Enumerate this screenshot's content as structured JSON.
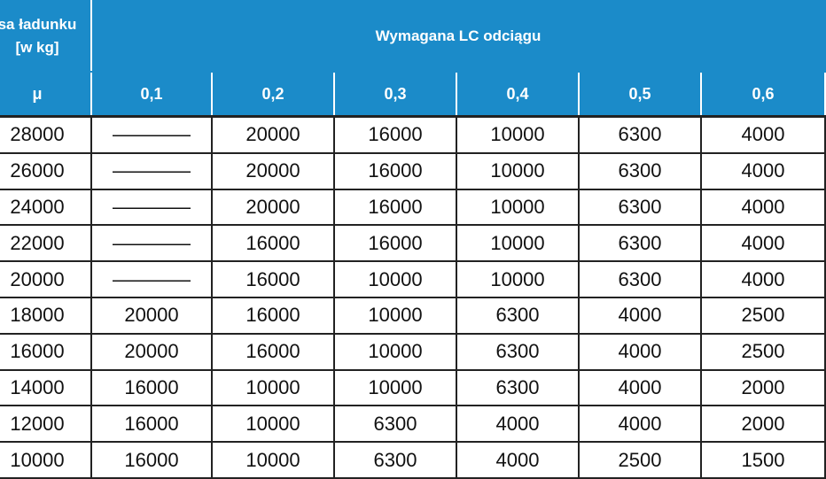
{
  "table": {
    "header": {
      "first_col": [
        "sa ładunku",
        "[w kg]"
      ],
      "group": "Wymagana LC odciągu"
    },
    "subheader": [
      "μ",
      "0,1",
      "0,2",
      "0,3",
      "0,4",
      "0,5",
      "0,6"
    ],
    "rows": [
      [
        28000,
        "————",
        20000,
        16000,
        10000,
        6300,
        4000
      ],
      [
        26000,
        "————",
        20000,
        16000,
        10000,
        6300,
        4000
      ],
      [
        24000,
        "————",
        20000,
        16000,
        10000,
        6300,
        4000
      ],
      [
        22000,
        "————",
        16000,
        16000,
        10000,
        6300,
        4000
      ],
      [
        20000,
        "————",
        16000,
        10000,
        10000,
        6300,
        4000
      ],
      [
        18000,
        20000,
        16000,
        10000,
        6300,
        4000,
        2500
      ],
      [
        16000,
        20000,
        16000,
        10000,
        6300,
        4000,
        2500
      ],
      [
        14000,
        16000,
        10000,
        10000,
        6300,
        4000,
        2000
      ],
      [
        12000,
        16000,
        10000,
        6300,
        4000,
        4000,
        2000
      ],
      [
        10000,
        16000,
        10000,
        6300,
        4000,
        2500,
        1500
      ]
    ]
  }
}
